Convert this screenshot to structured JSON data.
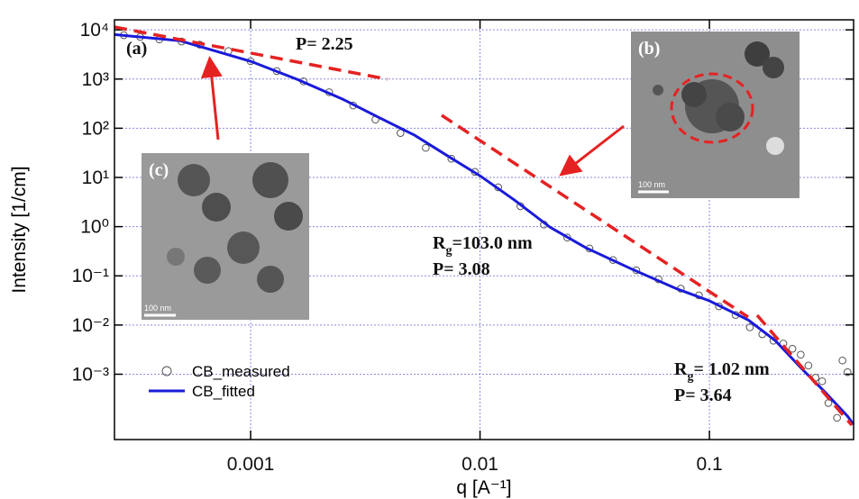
{
  "chart_data": {
    "type": "scatter-line",
    "x_label": "q [A⁻¹]",
    "y_label": "Intensity [1/cm]",
    "xscale": "log",
    "yscale": "log",
    "xlim": [
      0.000255,
      0.425
    ],
    "ylim": [
      4.7e-05,
      16000
    ],
    "xticks": [
      0.001,
      0.01,
      0.1
    ],
    "yticks": [
      {
        "value": 10000,
        "label": "10⁴"
      },
      {
        "value": 1000,
        "label": "10³"
      },
      {
        "value": 100,
        "label": "10²"
      },
      {
        "value": 10,
        "label": "10¹"
      },
      {
        "value": 1,
        "label": "10⁰"
      },
      {
        "value": 0.1,
        "label": "10⁻¹"
      },
      {
        "value": 0.01,
        "label": "10⁻²"
      },
      {
        "value": 0.001,
        "label": "10⁻³"
      }
    ],
    "grid": true,
    "grid_color": "#8a8ae6",
    "legend": "lower left",
    "series": [
      {
        "name": "CB_measured",
        "color": "#555555",
        "marker": "circle",
        "x": [
          0.00028,
          0.00033,
          0.0004,
          0.0005,
          0.0006,
          0.0008,
          0.001,
          0.0013,
          0.0017,
          0.0022,
          0.0028,
          0.0035,
          0.0045,
          0.0058,
          0.0075,
          0.0095,
          0.012,
          0.015,
          0.019,
          0.024,
          0.03,
          0.038,
          0.048,
          0.06,
          0.075,
          0.09,
          0.11,
          0.13,
          0.15,
          0.17,
          0.19,
          0.21,
          0.23,
          0.25,
          0.27,
          0.29,
          0.31,
          0.33,
          0.36,
          0.38,
          0.4
        ],
        "values": [
          7800,
          7200,
          6400,
          5800,
          5000,
          3700,
          2300,
          1450,
          900,
          540,
          290,
          150,
          80,
          40,
          24,
          13,
          6.3,
          2.6,
          1.1,
          0.6,
          0.36,
          0.21,
          0.13,
          0.085,
          0.055,
          0.04,
          0.024,
          0.016,
          0.009,
          0.0065,
          0.0048,
          0.0042,
          0.0033,
          0.0025,
          0.0015,
          0.00085,
          0.00072,
          0.00026,
          0.00013,
          0.0019,
          0.0011
        ]
      },
      {
        "name": "CB_fitted",
        "color": "#1a1adb",
        "marker": "line",
        "x": [
          0.000255,
          0.000494,
          0.001,
          0.0016,
          0.00252,
          0.00361,
          0.00519,
          0.00746,
          0.01,
          0.0141,
          0.0202,
          0.029,
          0.0455,
          0.0716,
          0.1,
          0.148,
          0.194,
          0.254,
          0.318,
          0.4,
          0.425
        ],
        "values": [
          8000,
          6000,
          2300,
          980,
          390,
          167,
          72,
          25,
          10.8,
          3.5,
          0.97,
          0.37,
          0.14,
          0.055,
          0.031,
          0.0126,
          0.0048,
          0.00126,
          0.00044,
          0.00014,
          9.5e-05
        ]
      }
    ],
    "annotations": [
      {
        "text": "(a)"
      },
      {
        "text": "P= 2.25"
      },
      {
        "text": "R",
        "sub": "g",
        "rest": "=103.0 nm"
      },
      {
        "text": "P= 3.08"
      },
      {
        "text": "R",
        "sub": "g",
        "rest": "= 1.02 nm"
      },
      {
        "text": "P= 3.64"
      }
    ],
    "insets": [
      {
        "label": "(b)",
        "scale": "100 nm"
      },
      {
        "label": "(c)",
        "scale": "100 nm"
      }
    ]
  }
}
